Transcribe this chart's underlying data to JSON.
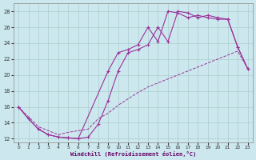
{
  "xlabel": "Windchill (Refroidissement éolien,°C)",
  "bg_color": "#cce8ee",
  "grid_color": "#aacccc",
  "line_color": "#993399",
  "xlim": [
    -0.5,
    23.5
  ],
  "ylim": [
    11.5,
    29
  ],
  "xticks": [
    0,
    1,
    2,
    3,
    4,
    5,
    6,
    7,
    8,
    9,
    10,
    11,
    12,
    13,
    14,
    15,
    16,
    17,
    18,
    19,
    20,
    21,
    22,
    23
  ],
  "yticks": [
    12,
    14,
    16,
    18,
    20,
    22,
    24,
    26,
    28
  ],
  "curve1_x": [
    0,
    1,
    2,
    3,
    4,
    5,
    6,
    9,
    10,
    11,
    12,
    13,
    14,
    15,
    16,
    17,
    18,
    19,
    20,
    21,
    22,
    23
  ],
  "curve1_y": [
    16,
    14.5,
    13.2,
    12.5,
    12.2,
    12.1,
    12.0,
    20.5,
    22.8,
    23.2,
    23.8,
    26.0,
    24.2,
    28.0,
    27.8,
    27.2,
    27.5,
    27.2,
    27.0,
    27.0,
    23.5,
    20.8
  ],
  "curve2_x": [
    0,
    1,
    2,
    3,
    4,
    5,
    6,
    7,
    8,
    9,
    10,
    11,
    12,
    13,
    14,
    15,
    16,
    17,
    18,
    19,
    20,
    21,
    22,
    23
  ],
  "curve2_y": [
    16,
    14.5,
    13.2,
    12.5,
    12.2,
    12.1,
    12.0,
    12.2,
    13.8,
    16.8,
    20.5,
    22.8,
    23.2,
    23.8,
    26.0,
    24.2,
    28.0,
    27.8,
    27.2,
    27.5,
    27.2,
    27.0,
    23.5,
    20.8
  ],
  "curve3_x": [
    0,
    2,
    3,
    4,
    5,
    6,
    7,
    8,
    9,
    10,
    11,
    12,
    13,
    14,
    15,
    16,
    17,
    18,
    19,
    20,
    21,
    22,
    23
  ],
  "curve3_y": [
    16,
    13.5,
    13.0,
    12.5,
    12.8,
    13.0,
    13.2,
    14.5,
    15.2,
    16.2,
    17.0,
    17.8,
    18.5,
    19.0,
    19.5,
    20.0,
    20.5,
    21.0,
    21.5,
    22.0,
    22.5,
    23.0,
    20.8
  ]
}
